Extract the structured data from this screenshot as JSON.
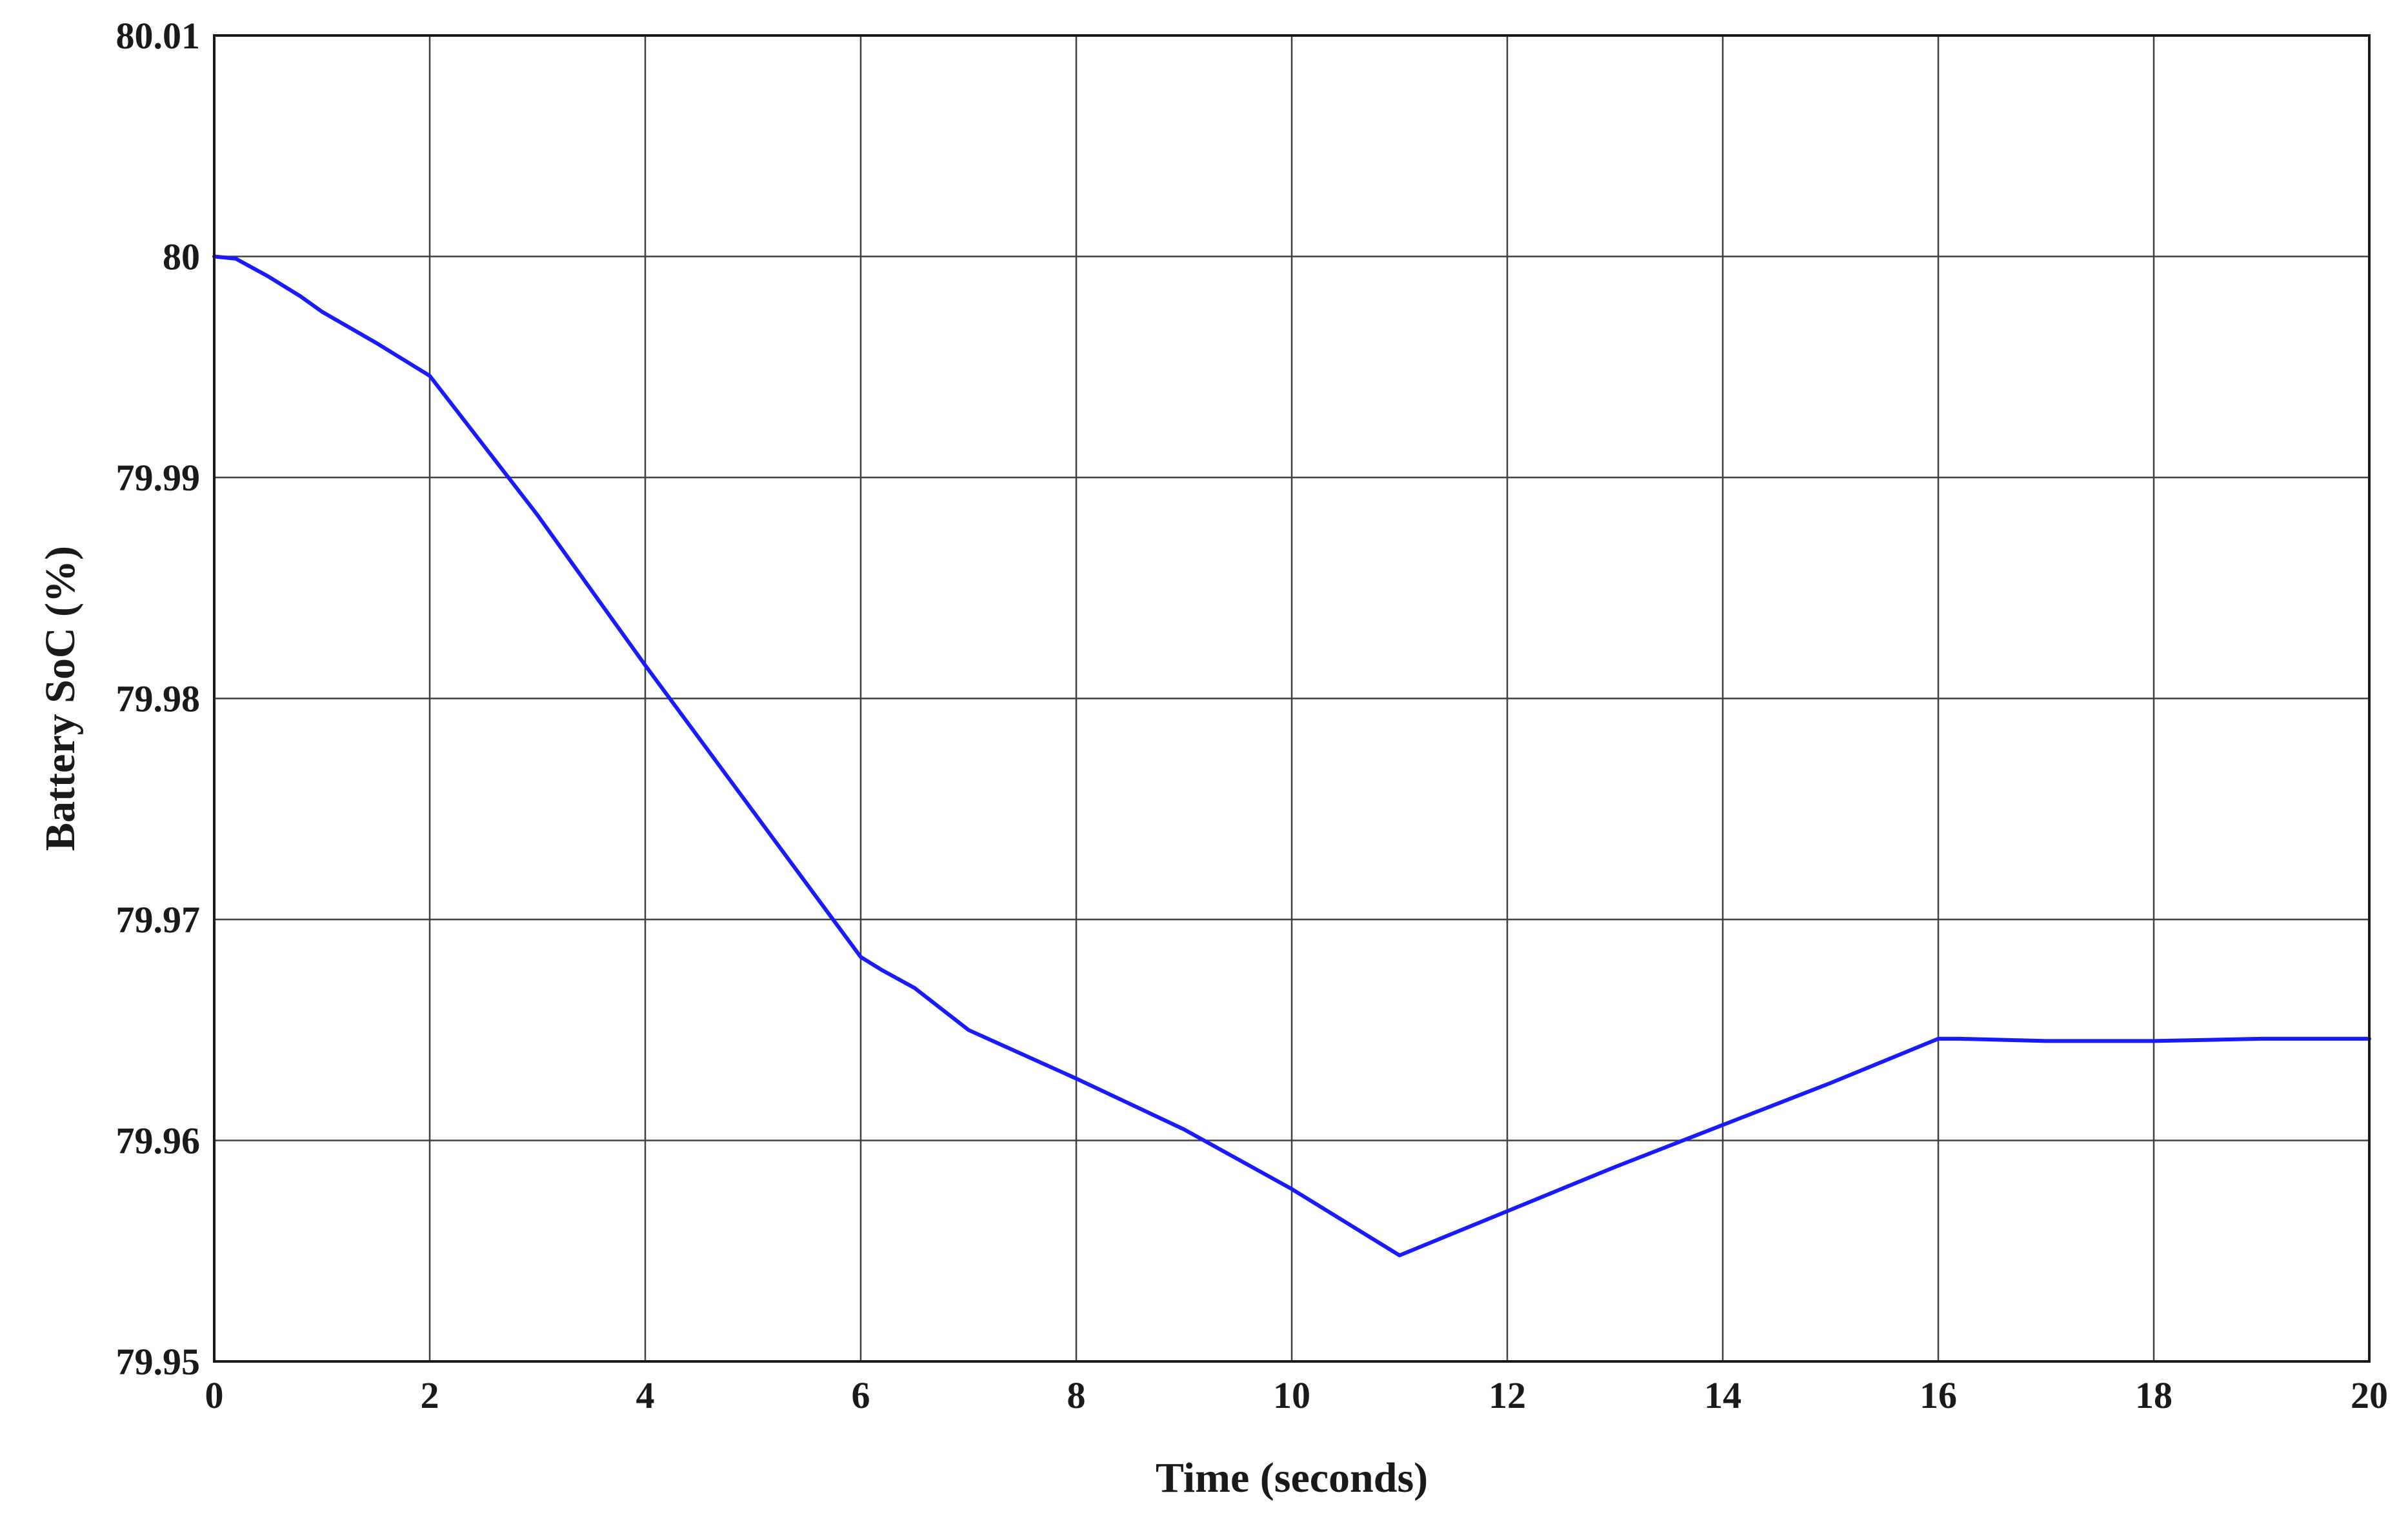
{
  "chart_data": {
    "type": "line",
    "title": "",
    "xlabel": "Time (seconds)",
    "ylabel": "Battery SoC (%)",
    "xlim": [
      0,
      20
    ],
    "ylim": [
      79.95,
      80.01
    ],
    "x_ticks": [
      0,
      2,
      4,
      6,
      8,
      10,
      12,
      14,
      16,
      18,
      20
    ],
    "x_tick_labels": [
      "0",
      "2",
      "4",
      "6",
      "8",
      "10",
      "12",
      "14",
      "16",
      "18",
      "20"
    ],
    "y_ticks": [
      79.95,
      79.96,
      79.97,
      79.98,
      79.99,
      80,
      80.01
    ],
    "y_tick_labels": [
      "79.95",
      "79.96",
      "79.97",
      "79.98",
      "79.99",
      "80",
      "80.01"
    ],
    "grid": true,
    "legend": "none",
    "series": [
      {
        "color": "#1a1aff",
        "x": [
          0,
          0.2,
          0.5,
          0.8,
          1.0,
          1.5,
          2.0,
          3.0,
          4.0,
          5.0,
          6.0,
          6.2,
          6.5,
          7.0,
          8.0,
          9.0,
          10.0,
          11.0,
          12.0,
          13.0,
          14.0,
          15.0,
          16.0,
          16.2,
          17.0,
          18.0,
          19.0,
          20.0
        ],
        "y": [
          80.0,
          79.9999,
          79.9991,
          79.9982,
          79.9975,
          79.9961,
          79.9946,
          79.9883,
          79.9815,
          79.9749,
          79.9683,
          79.9677,
          79.9669,
          79.965,
          79.9628,
          79.9605,
          79.9578,
          79.9548,
          79.9568,
          79.9588,
          79.9607,
          79.9626,
          79.9646,
          79.9646,
          79.9645,
          79.9645,
          79.9646,
          79.9646
        ]
      }
    ]
  }
}
